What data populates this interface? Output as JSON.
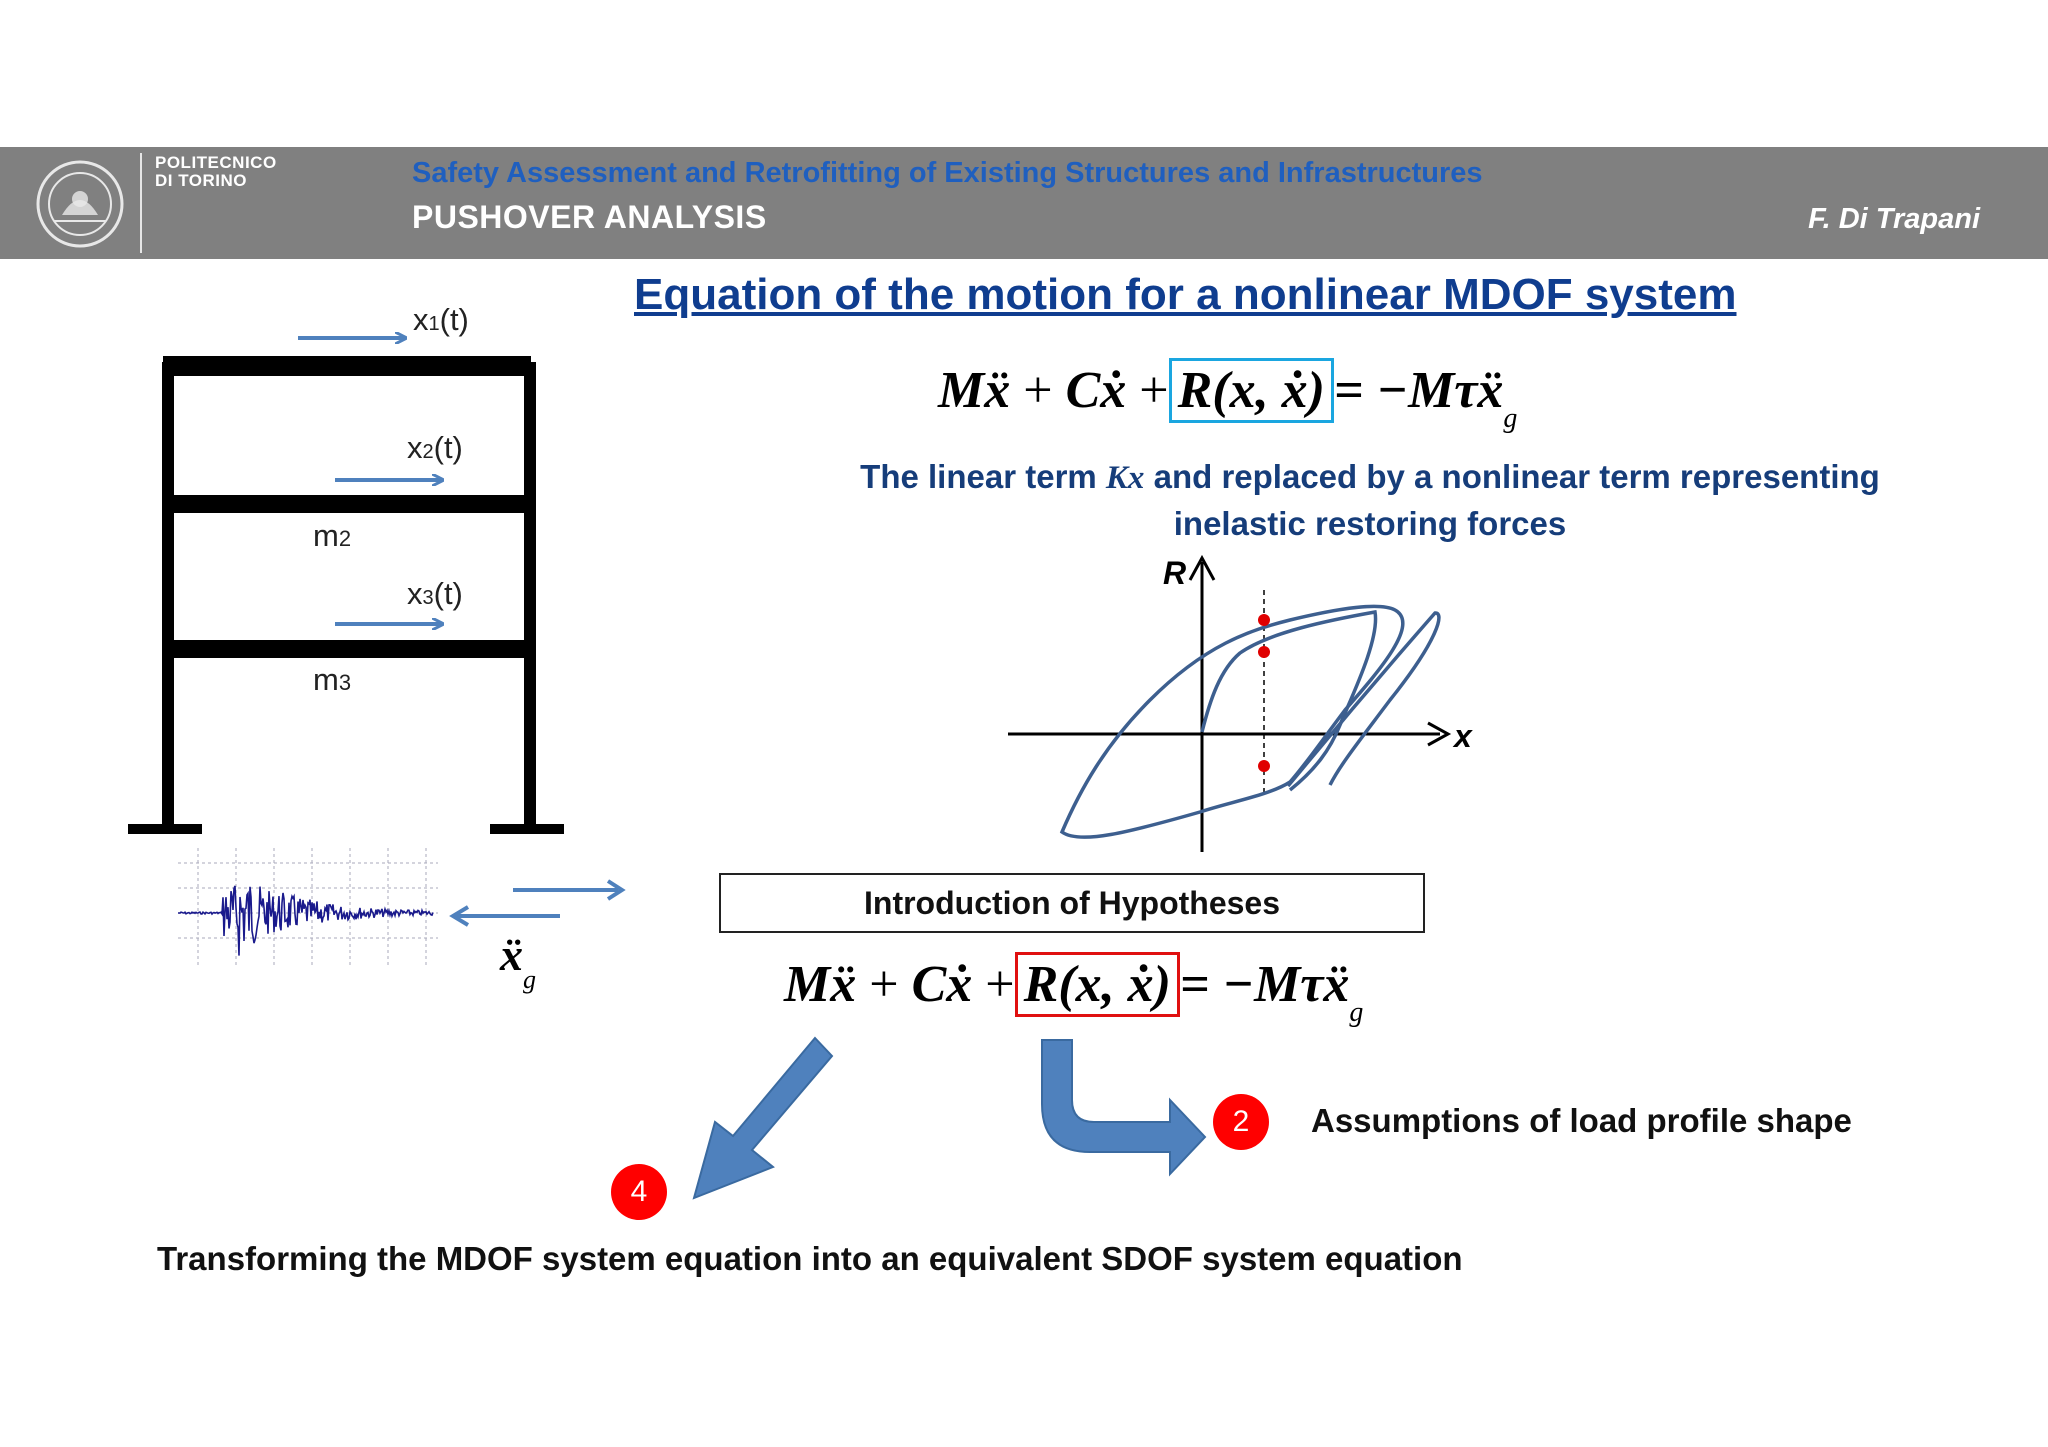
{
  "header": {
    "logo_line1": "POLITECNICO",
    "logo_line2": "DI TORINO",
    "course_title": "Safety Assessment and Retrofitting of Existing Structures and Infrastructures",
    "section_title": "PUSHOVER  ANALYSIS",
    "author": "F. Di Trapani"
  },
  "slide_title": "Equation of the motion for a nonlinear MDOF system",
  "frame": {
    "disp1": "x",
    "disp1_sub": "1",
    "disp2": "x",
    "disp2_sub": "2",
    "disp3": "x",
    "disp3_sub": "3",
    "disp_suffix": "(t)",
    "mass2": "m",
    "mass2_sub": "2",
    "mass3": "m",
    "mass3_sub": "3",
    "ground_accel": "ẍ",
    "ground_accel_sub": "g"
  },
  "equation": {
    "term_mass": "Mẍ",
    "plus1": "+",
    "term_damp": "Cẋ",
    "plus2": "+",
    "term_restoring": "R(x, ẋ)",
    "equals": "= −Mτẍ",
    "sub_g": "g"
  },
  "equation2": {
    "term_mass": "Mẍ",
    "plus1": "+",
    "term_damp": "Cẋ",
    "plus2": "+",
    "term_restoring": "R(x, ẋ)",
    "equals": "= −Mτẍ",
    "sub_g": "g"
  },
  "note": {
    "part1": "The linear term ",
    "kx": "Kx",
    "part2": " and replaced by a nonlinear term representing",
    "line2": "inelastic restoring forces"
  },
  "hysteresis": {
    "y_label": "R",
    "x_label": "x"
  },
  "hypotheses_box": "Introduction of Hypotheses",
  "badge_2": "2",
  "assumption_text": "Assumptions of load profile shape",
  "badge_4": "4",
  "transform_text": "Transforming the MDOF system equation into an equivalent SDOF system equation",
  "colors": {
    "header_bg": "#808080",
    "course_title": "#1f5fbf",
    "slide_title": "#0f3d8f",
    "arrow_blue": "#4f81bd",
    "box_cyan": "#1aa6e0",
    "box_red": "#e01010",
    "badge_red": "#ff0000"
  }
}
